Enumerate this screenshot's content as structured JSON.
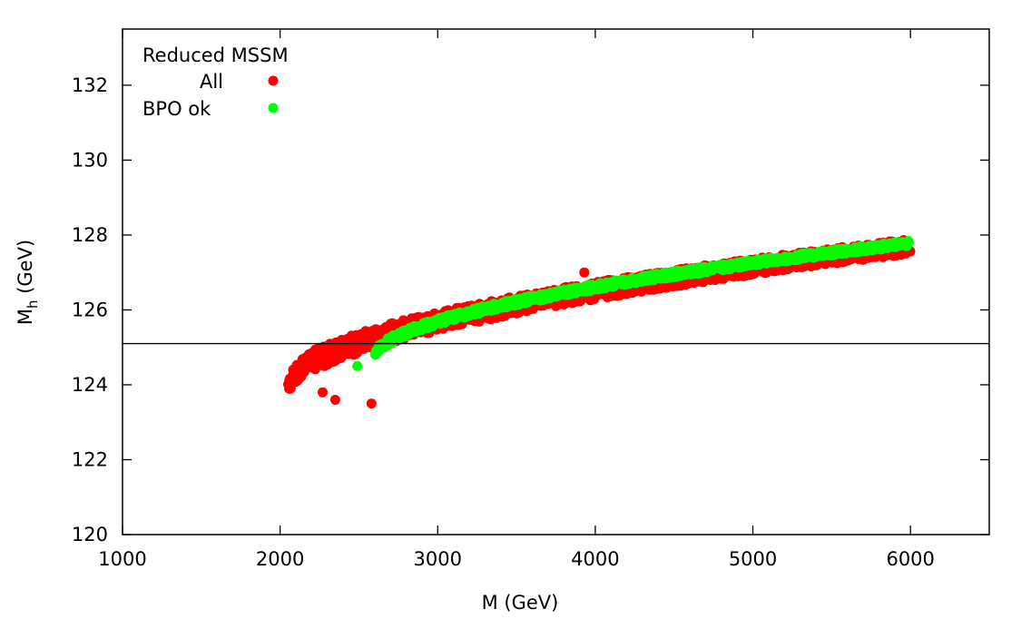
{
  "chart_data": {
    "type": "scatter",
    "title": "",
    "xlabel": "M (GeV)",
    "ylabel_main": "M",
    "ylabel_sub": "h",
    "ylabel_tail": " (GeV)",
    "xlim": [
      1000,
      6500
    ],
    "ylim": [
      120,
      133.5
    ],
    "xticks": [
      1000,
      2000,
      3000,
      4000,
      5000,
      6000
    ],
    "yticks": [
      120,
      122,
      124,
      126,
      128,
      130,
      132
    ],
    "xtick_labels": [
      "1000",
      "2000",
      "3000",
      "4000",
      "5000",
      "6000"
    ],
    "ytick_labels": [
      "120",
      "122",
      "124",
      "126",
      "128",
      "130",
      "132"
    ],
    "reference_line_y": 125.1,
    "legend": {
      "title": "Reduced MSSM",
      "placement": "top-left"
    },
    "series": [
      {
        "name": "All",
        "color": "#ff0000",
        "band": {
          "x_start": 2050,
          "x_end": 6000,
          "lower_start": 123.7,
          "lower_end": 127.5,
          "upper_start": 124.3,
          "upper_end": 127.9
        },
        "outliers": [
          {
            "x": 2580,
            "y": 123.5
          },
          {
            "x": 2350,
            "y": 123.6
          },
          {
            "x": 2270,
            "y": 123.8
          },
          {
            "x": 2150,
            "y": 124.7
          },
          {
            "x": 2060,
            "y": 124.0
          },
          {
            "x": 2500,
            "y": 125.2
          },
          {
            "x": 3930,
            "y": 127.0
          }
        ]
      },
      {
        "name": "BPO ok",
        "color": "#00ff00",
        "band": {
          "x_start": 2600,
          "x_end": 5990,
          "lower_start": 124.65,
          "lower_end": 127.7,
          "upper_start": 124.85,
          "upper_end": 127.85
        },
        "outliers": [
          {
            "x": 2490,
            "y": 124.5
          },
          {
            "x": 5990,
            "y": 127.8
          }
        ]
      }
    ]
  }
}
